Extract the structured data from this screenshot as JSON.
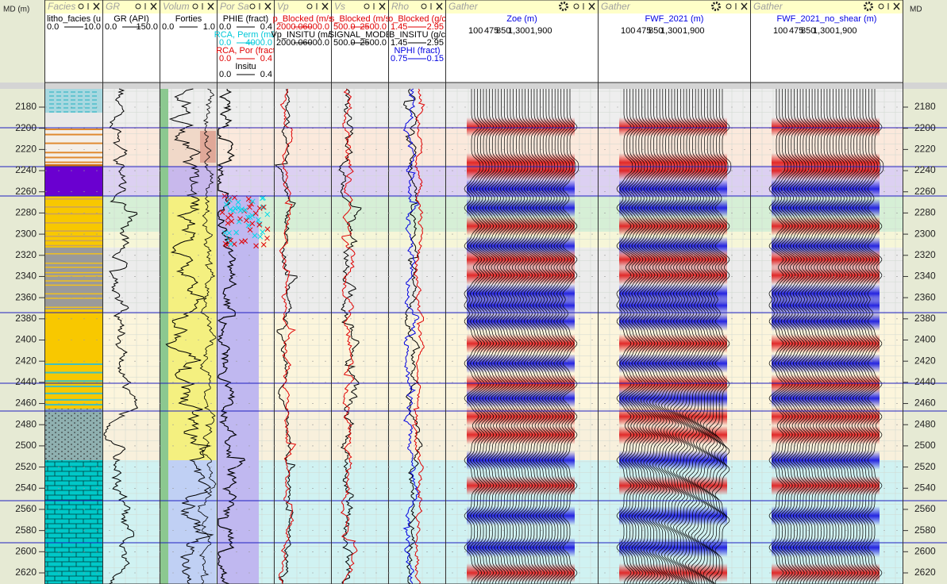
{
  "axis": {
    "left_label": "MD (m)",
    "right_label": "MD",
    "ticks": [
      2180,
      2200,
      2220,
      2240,
      2260,
      2280,
      2300,
      2320,
      2340,
      2360,
      2380,
      2400,
      2420,
      2440,
      2460,
      2480,
      2500,
      2520,
      2540,
      2560,
      2580,
      2600,
      2620
    ]
  },
  "tracks": [
    {
      "title": "Facies",
      "curves": [
        {
          "name": "litho_facies (u",
          "min": "0.0",
          "max": "10.0",
          "color": "#000000"
        }
      ]
    },
    {
      "title": "GR",
      "curves": [
        {
          "name": "GR (API)",
          "min": "0.0",
          "max": "150.0",
          "color": "#000000"
        }
      ]
    },
    {
      "title": "Volum",
      "curves": [
        {
          "name": "Forties",
          "min": "0.0",
          "max": "1.0",
          "color": "#000000"
        }
      ]
    },
    {
      "title": "Por Sa",
      "curves": [
        {
          "name": "PHIE (fract)",
          "min": "0.0",
          "max": "0.4",
          "color": "#000000"
        },
        {
          "name": "RCA, Perm (mD",
          "min": "0.0",
          "max": "4000.0",
          "color": "#00c8d8"
        },
        {
          "name": "RCA, Por (fract",
          "min": "0.0",
          "max": "0.4",
          "color": "#e00000"
        },
        {
          "name": "Insitu",
          "min": "0.0",
          "max": "0.4",
          "color": "#000000"
        }
      ]
    },
    {
      "title": "Vp",
      "curves": [
        {
          "name": "p_Blocked (m/s",
          "min": "2000.0",
          "max": "6000.0",
          "color": "#e00000"
        },
        {
          "name": "Vp_INSITU (m/s",
          "min": "2000.0",
          "max": "6000.0",
          "color": "#000000"
        }
      ]
    },
    {
      "title": "Vs",
      "curves": [
        {
          "name": "s_Blocked (m/s",
          "min": "500.0",
          "max": "2500.0",
          "color": "#e00000"
        },
        {
          "name": "SIGNAL_MODE",
          "min": "500.0",
          "max": "2500.0",
          "color": "#000000"
        }
      ]
    },
    {
      "title": "Rho",
      "curves": [
        {
          "name": "o_Blocked (g/c",
          "min": "1.45",
          "max": "2.95",
          "color": "#e00000"
        },
        {
          "name": "B_INSITU (g/c",
          "min": "1.45",
          "max": "2.95",
          "color": "#000000"
        },
        {
          "name": "NPHI (fract)",
          "min": "0.75",
          "max": "-0.15",
          "color": "#0000e0"
        }
      ]
    },
    {
      "title": "Gather",
      "curves": [
        {
          "name": "Zoe (m)",
          "color": "#0000e0"
        }
      ],
      "offsets": [
        "100",
        "475",
        "850",
        "1,300",
        "1,900"
      ]
    },
    {
      "title": "Gather",
      "curves": [
        {
          "name": "FWF_2021 (m)",
          "color": "#0000e0"
        }
      ],
      "offsets": [
        "100",
        "475",
        "850",
        "1,300",
        "1,900"
      ]
    },
    {
      "title": "Gather",
      "curves": [
        {
          "name": "FWF_2021_no_shear (m)",
          "color": "#0000e0"
        }
      ],
      "offsets": [
        "100",
        "475",
        "850",
        "1,300",
        "1,900"
      ]
    }
  ]
}
